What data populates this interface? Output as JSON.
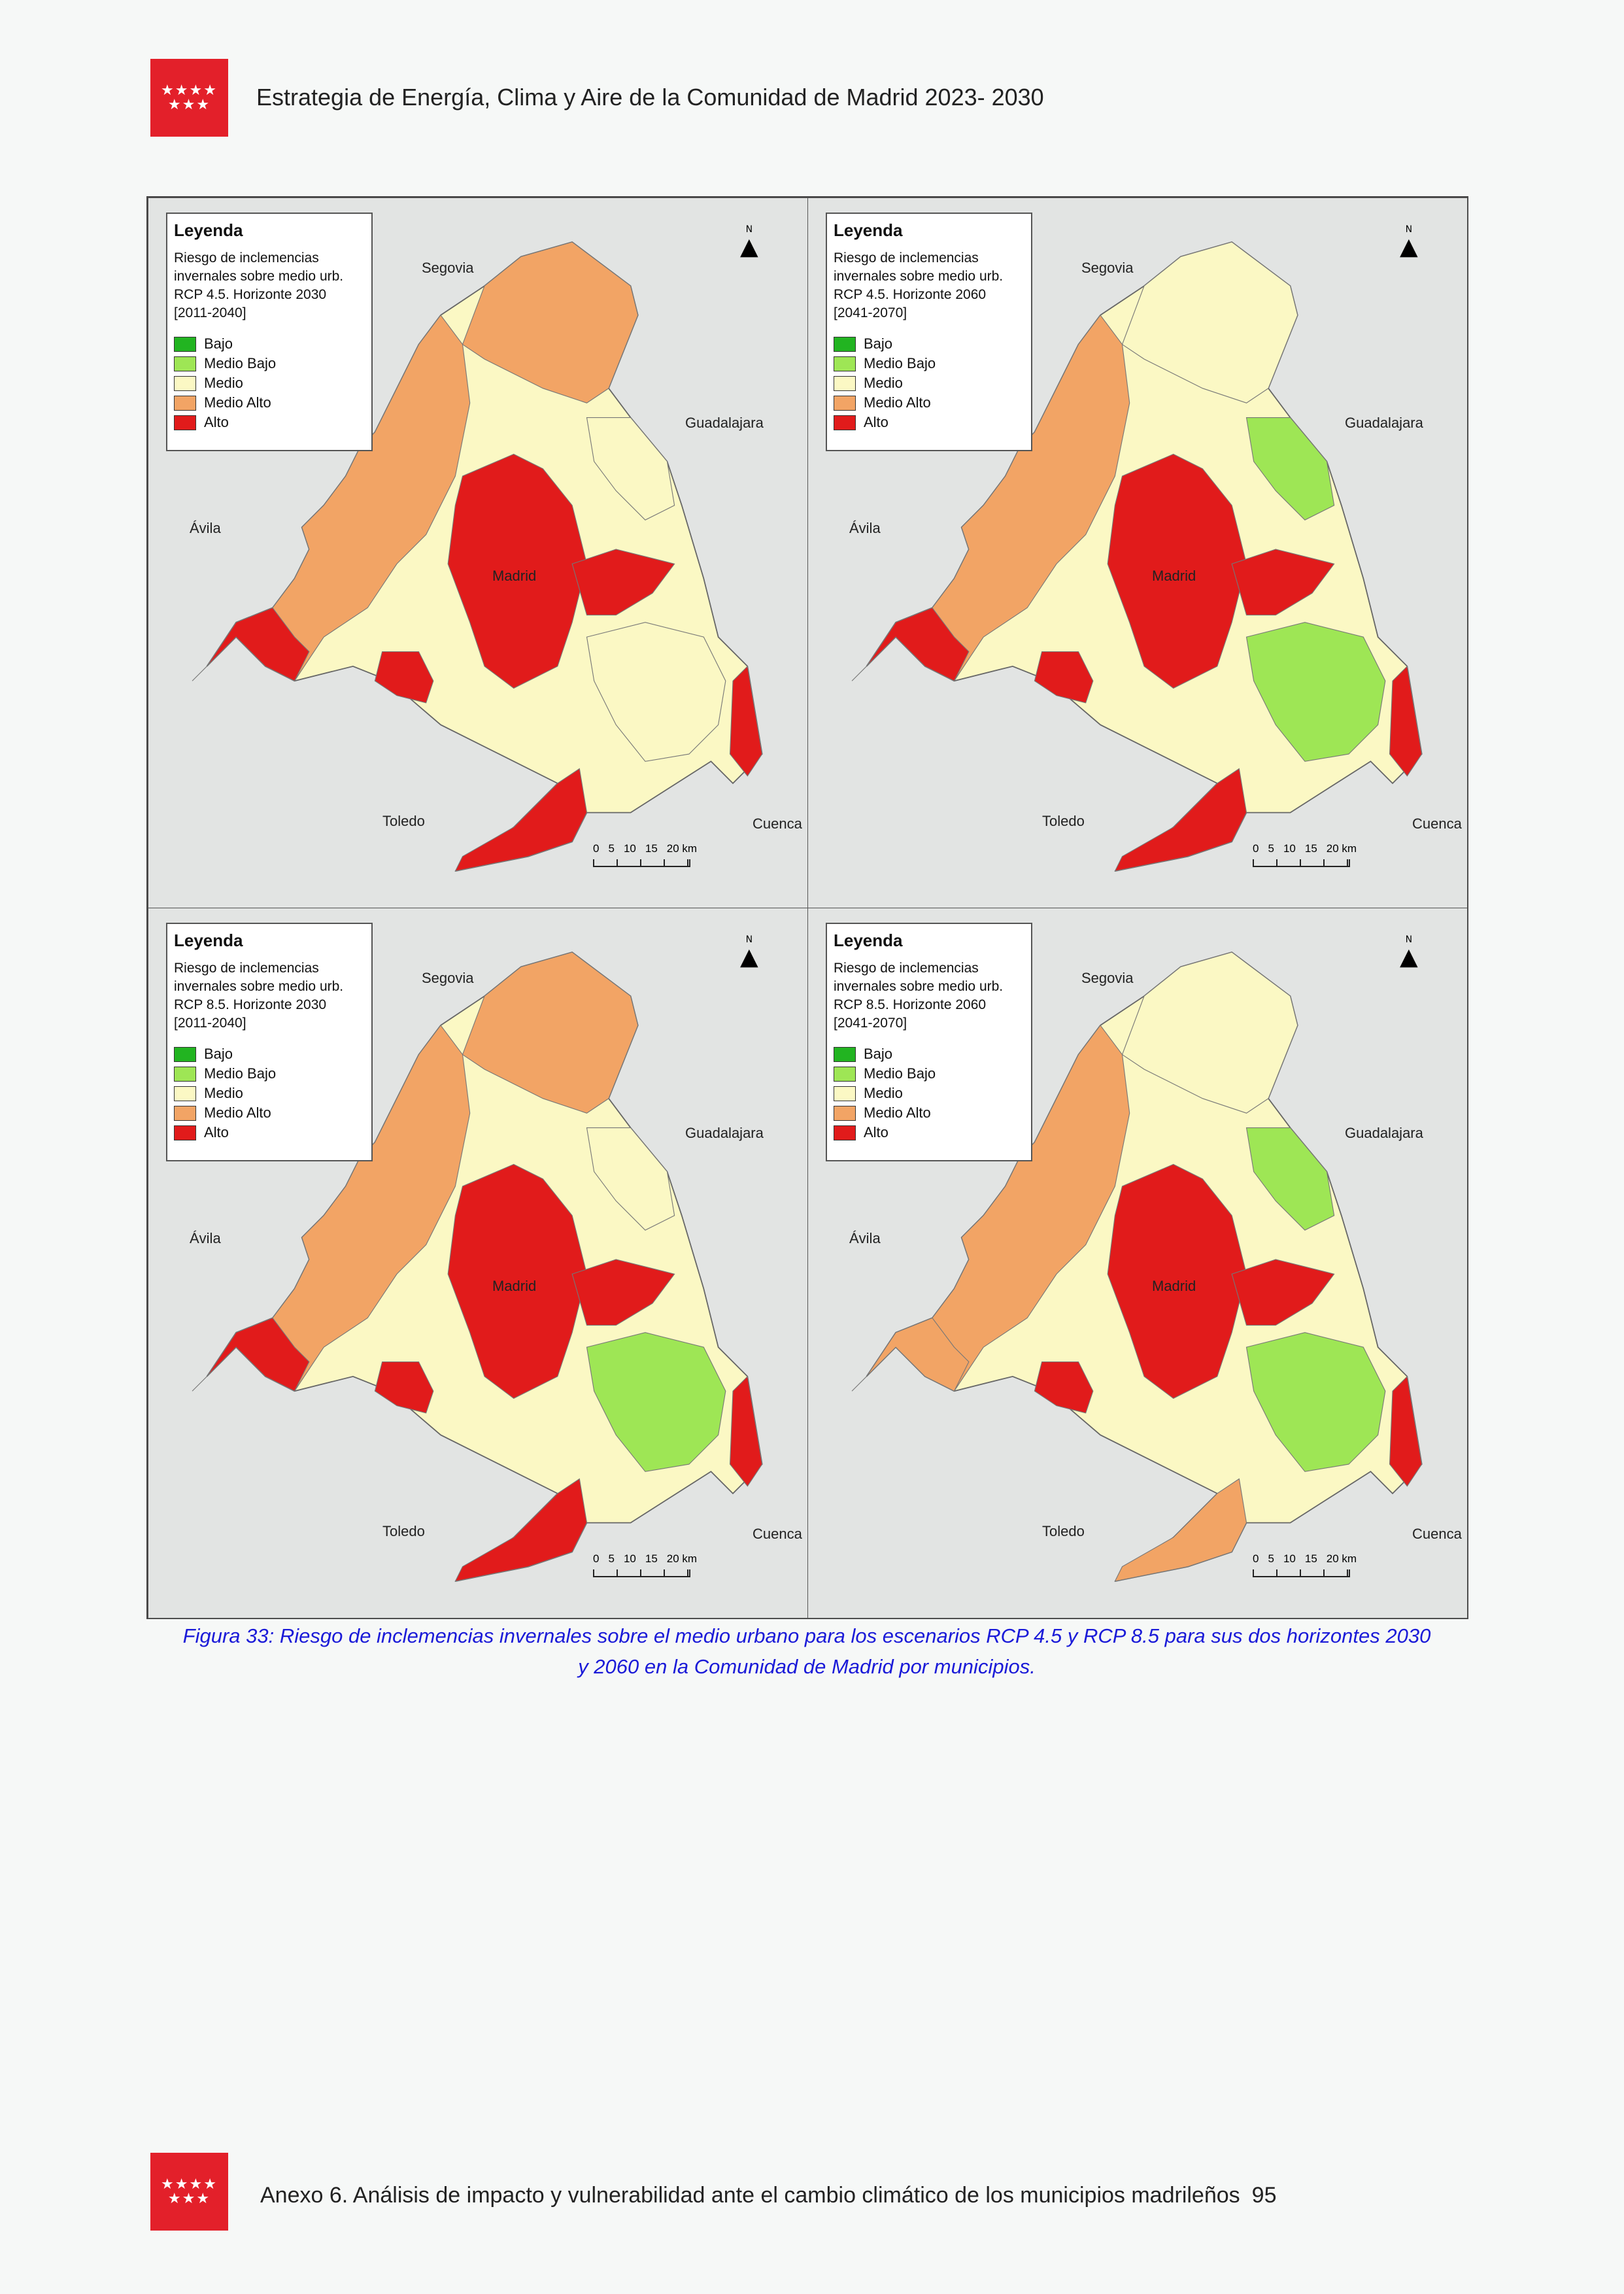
{
  "header": {
    "logo_stars": "★★★★ ★★★",
    "title": "Estrategia de Energía, Clima y Aire de la Comunidad de Madrid 2023- 2030"
  },
  "legend_colors": {
    "Bajo": "#22b421",
    "Medio Bajo": "#9ee655",
    "Medio": "#fbf8c4",
    "Medio Alto": "#f2a465",
    "Alto": "#e11b1b"
  },
  "maps": [
    {
      "legend_title": "Leyenda",
      "legend_desc": [
        "Riesgo de inclemencias",
        "invernales sobre medio urb.",
        "RCP 4.5. Horizonte 2030",
        "[2011-2040]"
      ],
      "zones": [
        "Medio Alto",
        "Medio Alto",
        "Alto",
        "Alto",
        "Alto",
        "Medio",
        "Alto",
        "Alto",
        "Medio",
        "Alto"
      ]
    },
    {
      "legend_title": "Leyenda",
      "legend_desc": [
        "Riesgo de inclemencias",
        "invernales sobre medio urb.",
        "RCP 4.5. Horizonte 2060",
        "[2041-2070]"
      ],
      "zones": [
        "Medio",
        "Medio Alto",
        "Alto",
        "Alto",
        "Alto",
        "Medio Bajo",
        "Alto",
        "Alto",
        "Medio Bajo",
        "Alto"
      ]
    },
    {
      "legend_title": "Leyenda",
      "legend_desc": [
        "Riesgo de inclemencias",
        "invernales sobre medio urb.",
        "RCP 8.5. Horizonte 2030",
        "[2011-2040]"
      ],
      "zones": [
        "Medio Alto",
        "Medio Alto",
        "Alto",
        "Alto",
        "Alto",
        "Medio Bajo",
        "Alto",
        "Alto",
        "Medio",
        "Alto"
      ]
    },
    {
      "legend_title": "Leyenda",
      "legend_desc": [
        "Riesgo de inclemencias",
        "invernales sobre medio urb.",
        "RCP 8.5. Horizonte 2060",
        "[2041-2070]"
      ],
      "zones": [
        "Medio",
        "Medio Alto",
        "Alto",
        "Alto",
        "Alto",
        "Medio Bajo",
        "Medio Alto",
        "Alto",
        "Medio Bajo",
        "Medio Alto"
      ]
    }
  ],
  "legend_items": [
    "Bajo",
    "Medio Bajo",
    "Medio",
    "Medio Alto",
    "Alto"
  ],
  "places": {
    "segovia": "Segovia",
    "guadalajara": "Guadalajara",
    "avila": "Ávila",
    "madrid": "Madrid",
    "toledo": "Toledo",
    "cuenca": "Cuenca"
  },
  "scale": {
    "ticks": [
      "0",
      "5",
      "10",
      "15",
      "20 km"
    ]
  },
  "north_label": "N",
  "caption": {
    "line1": "Figura 33: Riesgo de inclemencias invernales sobre el medio urbano para los escenarios RCP 4.5 y RCP 8.5 para sus dos horizontes 2030",
    "line2": "y 2060 en la Comunidad de Madrid por municipios."
  },
  "footer": {
    "text": "Anexo 6. Análisis de impacto y vulnerabilidad ante el cambio climático de los municipios madrileños",
    "page": "95"
  }
}
